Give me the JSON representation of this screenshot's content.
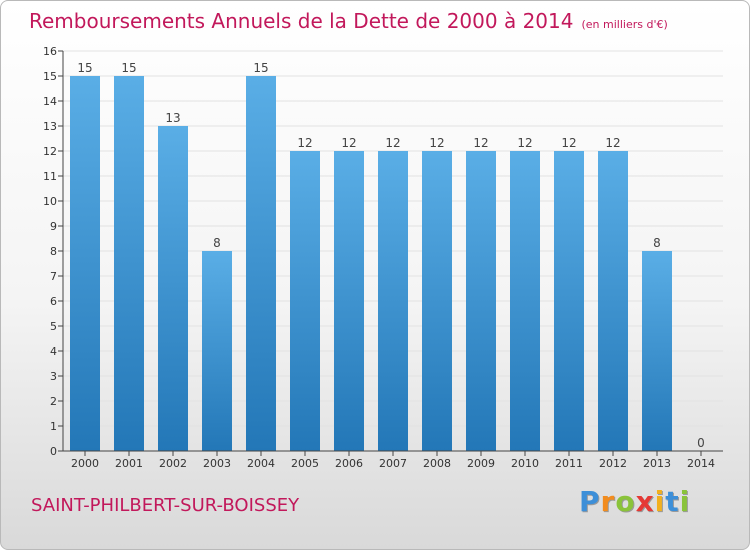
{
  "title": "Remboursements Annuels de la Dette de 2000 à 2014",
  "unit": "(en milliers d'€)",
  "commune": "SAINT-PHILBERT-SUR-BOISSEY",
  "logo": {
    "letters": [
      "P",
      "r",
      "o",
      "x",
      "i",
      "t",
      "i"
    ],
    "colors": [
      "#3d8fd8",
      "#f28c1e",
      "#8ac33a",
      "#e53935",
      "#f2b01e",
      "#3d8fd8",
      "#8ac33a"
    ]
  },
  "colors": {
    "bar_top": "#5aaee6",
    "bar_bottom": "#2377b7",
    "title": "#c2185b",
    "axis": "#444444",
    "grid": "#e2e2e2"
  },
  "chart_data": {
    "type": "bar",
    "title": "Remboursements Annuels de la Dette de 2000 à 2014",
    "xlabel": "",
    "ylabel": "en milliers d'€",
    "categories": [
      "2000",
      "2001",
      "2002",
      "2003",
      "2004",
      "2005",
      "2006",
      "2007",
      "2008",
      "2009",
      "2010",
      "2011",
      "2012",
      "2013",
      "2014"
    ],
    "values": [
      15,
      15,
      13,
      8,
      15,
      12,
      12,
      12,
      12,
      12,
      12,
      12,
      12,
      8,
      0
    ],
    "ylim": [
      0,
      16
    ],
    "yticks": [
      0,
      1,
      2,
      3,
      4,
      5,
      6,
      7,
      8,
      9,
      10,
      11,
      12,
      13,
      14,
      15,
      16
    ],
    "grid": true,
    "legend": "none"
  }
}
